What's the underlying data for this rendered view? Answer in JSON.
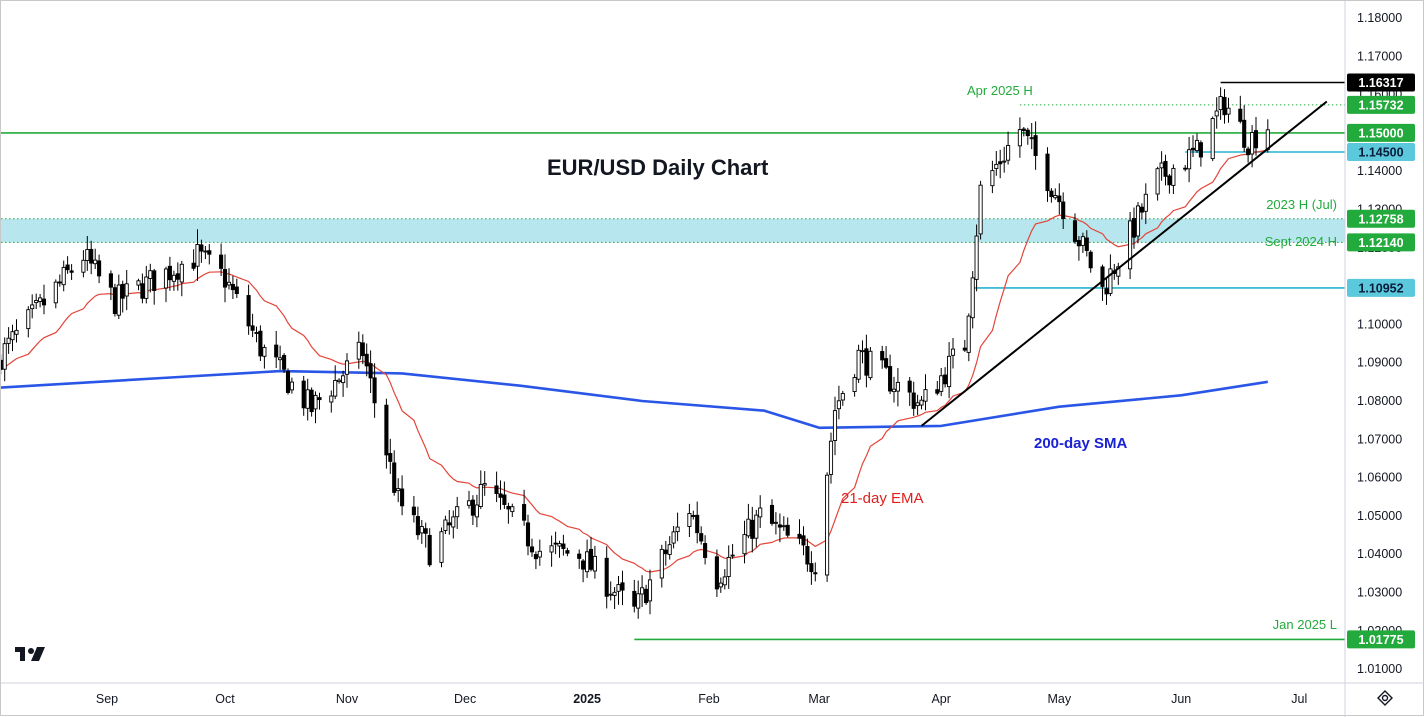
{
  "chart_data": {
    "type": "candlestick",
    "title": "EUR/USD Daily Chart",
    "ylim": [
      1.005,
      1.185
    ],
    "y_ticks": [
      "1.18000",
      "1.17000",
      "1.16000",
      "1.15000",
      "1.14000",
      "1.13000",
      "1.12000",
      "1.11000",
      "1.10000",
      "1.09000",
      "1.08000",
      "1.07000",
      "1.06000",
      "1.05000",
      "1.04000",
      "1.03000",
      "1.02000",
      "1.01000"
    ],
    "x_ticks": [
      "Sep",
      "Oct",
      "Nov",
      "Dec",
      "2025",
      "Feb",
      "Mar",
      "Apr",
      "May",
      "Jun",
      "Jul"
    ],
    "x_tick_dates": [
      "2024-09-01",
      "2024-10-01",
      "2024-11-01",
      "2024-12-01",
      "2025-01-01",
      "2025-02-01",
      "2025-03-01",
      "2025-04-01",
      "2025-05-01",
      "2025-06-01",
      "2025-07-01"
    ],
    "candles_start": "2024-08-05",
    "close_anchors": [
      {
        "date": "2024-08-05",
        "value": 1.092
      },
      {
        "date": "2024-08-26",
        "value": 1.118
      },
      {
        "date": "2024-09-03",
        "value": 1.106
      },
      {
        "date": "2024-09-24",
        "value": 1.118
      },
      {
        "date": "2024-10-01",
        "value": 1.112
      },
      {
        "date": "2024-10-10",
        "value": 1.094
      },
      {
        "date": "2024-10-23",
        "value": 1.078
      },
      {
        "date": "2024-11-05",
        "value": 1.093
      },
      {
        "date": "2024-11-14",
        "value": 1.054
      },
      {
        "date": "2024-11-22",
        "value": 1.041
      },
      {
        "date": "2024-12-06",
        "value": 1.057
      },
      {
        "date": "2024-12-20",
        "value": 1.041
      },
      {
        "date": "2024-12-30",
        "value": 1.04
      },
      {
        "date": "2025-01-13",
        "value": 1.025
      },
      {
        "date": "2025-01-27",
        "value": 1.052
      },
      {
        "date": "2025-02-03",
        "value": 1.034
      },
      {
        "date": "2025-02-14",
        "value": 1.05
      },
      {
        "date": "2025-02-28",
        "value": 1.038
      },
      {
        "date": "2025-03-05",
        "value": 1.078
      },
      {
        "date": "2025-03-11",
        "value": 1.092
      },
      {
        "date": "2025-03-27",
        "value": 1.079
      },
      {
        "date": "2025-04-07",
        "value": 1.095
      },
      {
        "date": "2025-04-11",
        "value": 1.135
      },
      {
        "date": "2025-04-21",
        "value": 1.151
      },
      {
        "date": "2025-05-02",
        "value": 1.131
      },
      {
        "date": "2025-05-12",
        "value": 1.109
      },
      {
        "date": "2025-05-26",
        "value": 1.138
      },
      {
        "date": "2025-06-05",
        "value": 1.145
      },
      {
        "date": "2025-06-12",
        "value": 1.158
      },
      {
        "date": "2025-06-18",
        "value": 1.148
      },
      {
        "date": "2025-06-23",
        "value": 1.152
      }
    ],
    "sma200": [
      {
        "date": "2024-08-05",
        "value": 1.0835
      },
      {
        "date": "2024-09-15",
        "value": 1.086
      },
      {
        "date": "2024-10-15",
        "value": 1.0878
      },
      {
        "date": "2024-11-15",
        "value": 1.0872
      },
      {
        "date": "2024-12-15",
        "value": 1.084
      },
      {
        "date": "2025-01-15",
        "value": 1.08
      },
      {
        "date": "2025-02-15",
        "value": 1.0775
      },
      {
        "date": "2025-03-01",
        "value": 1.073
      },
      {
        "date": "2025-04-01",
        "value": 1.0735
      },
      {
        "date": "2025-05-01",
        "value": 1.0785
      },
      {
        "date": "2025-06-01",
        "value": 1.0815
      },
      {
        "date": "2025-06-23",
        "value": 1.085
      }
    ],
    "ema_period": 21,
    "support_band": [
      1.1214,
      1.12758
    ],
    "horizontal_levels": [
      {
        "value": 1.16317,
        "label": "1.16317",
        "badge_bg": "#000000",
        "badge_fg": "#ffffff",
        "style": "solid",
        "color": "#000000",
        "from": "2025-06-11"
      },
      {
        "value": 1.15732,
        "label": "1.15732",
        "badge_bg": "#22ab3c",
        "badge_fg": "#ffffff",
        "style": "dotted",
        "color": "#22ab3c",
        "from": "2025-04-21"
      },
      {
        "value": 1.15,
        "label": "1.15000",
        "badge_bg": "#22ab3c",
        "badge_fg": "#ffffff",
        "style": "solid",
        "color": "#22ab3c",
        "from": "2024-08-05"
      },
      {
        "value": 1.145,
        "label": "1.14500",
        "badge_bg": "#5bc8dc",
        "badge_fg": "#0b1c3a",
        "style": "solid",
        "color": "#25b4cf",
        "from": "2025-06-02"
      },
      {
        "value": 1.12758,
        "label": "1.12758",
        "badge_bg": "#22ab3c",
        "badge_fg": "#ffffff",
        "style": "dotted",
        "color": "#22ab3c",
        "from": "2024-08-05"
      },
      {
        "value": 1.1214,
        "label": "1.12140",
        "badge_bg": "#22ab3c",
        "badge_fg": "#ffffff",
        "style": "dotted",
        "color": "#22ab3c",
        "from": "2024-08-05"
      },
      {
        "value": 1.10952,
        "label": "1.10952",
        "badge_bg": "#5bc8dc",
        "badge_fg": "#0b1c3a",
        "style": "solid",
        "color": "#25b4cf",
        "from": "2025-04-09"
      },
      {
        "value": 1.01775,
        "label": "1.01775",
        "badge_bg": "#22ab3c",
        "badge_fg": "#ffffff",
        "style": "solid",
        "color": "#22ab3c",
        "from": "2025-01-13"
      }
    ],
    "trendline": {
      "start": {
        "date": "2025-03-27",
        "value": 1.0735
      },
      "end": {
        "date": "2025-07-08",
        "value": 1.1582
      }
    },
    "annotations": {
      "apr_high": "Apr 2025 H",
      "high_2023": "2023 H (Jul)",
      "sept_high": "Sept 2024 H",
      "jan_low": "Jan 2025 L",
      "sma_label": "200-day SMA",
      "ema_label": "21-day EMA"
    },
    "colors": {
      "up_body": "#ffffff",
      "down_body": "#000000",
      "wick": "#000000",
      "sma": "#2a56e8",
      "ema": "#e3453a",
      "band": "#b8e6ef",
      "green": "#22ab3c",
      "cyan": "#25b4cf",
      "sma_text": "#1a22d6",
      "ema_text": "#e01e1e"
    }
  },
  "logo": "TV"
}
